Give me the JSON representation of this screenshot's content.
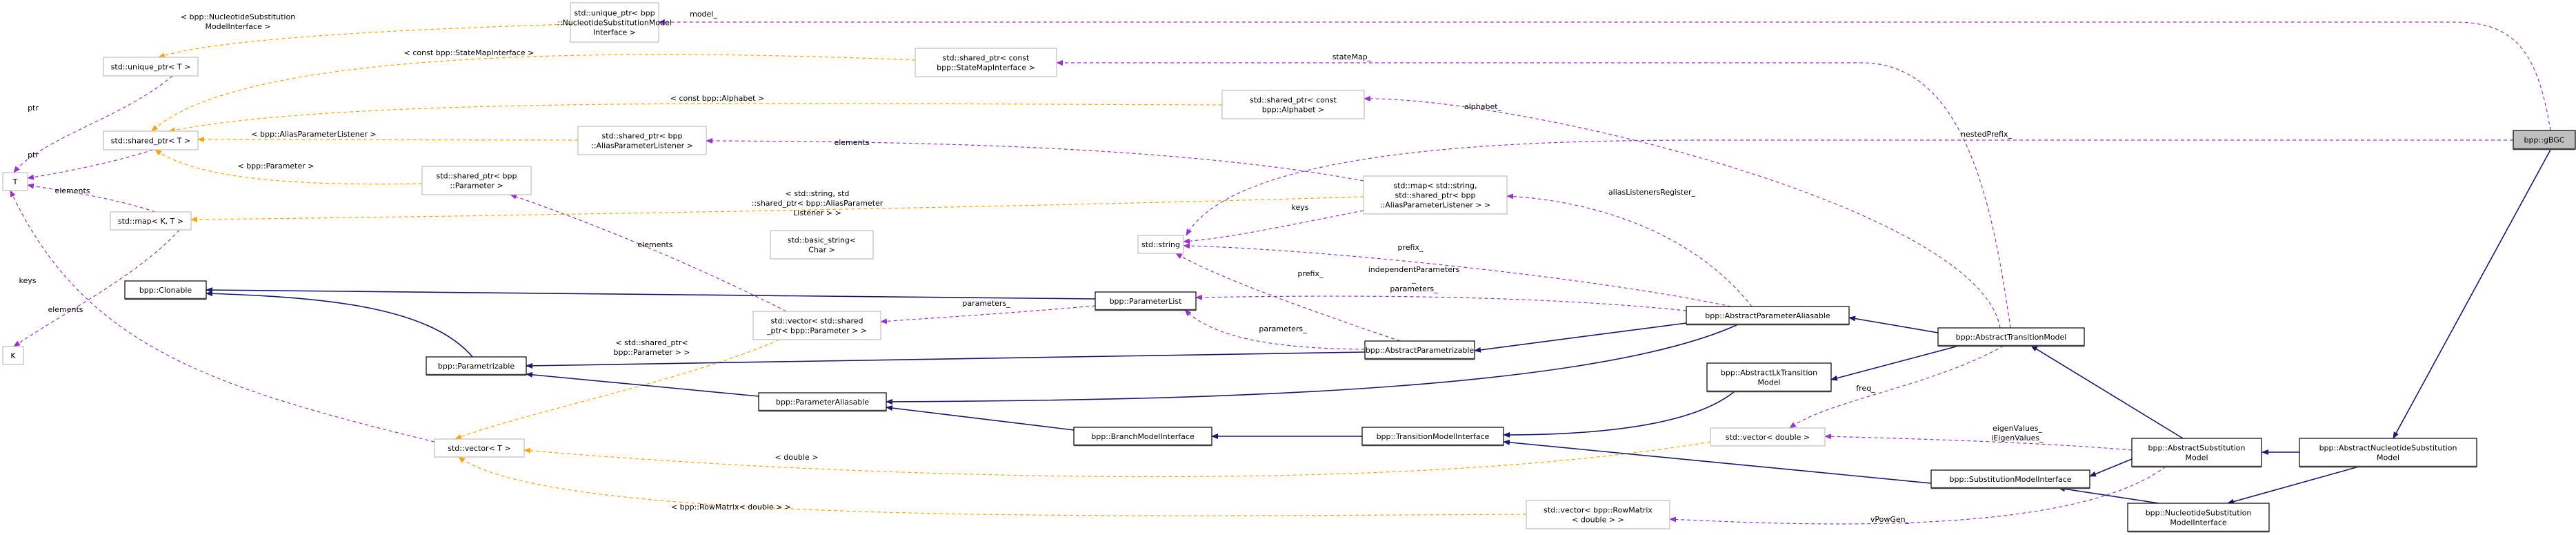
{
  "colors": {
    "usage_edge": "#9a32cd",
    "template_edge": "#ffa500",
    "inheritance_edge": "#191970",
    "focus_node_fill": "#bfbfbf",
    "template_node_border": "#bfbfbf",
    "class_node_border": "#000000"
  },
  "nodes": {
    "gBGC": [
      "bpp::gBGC"
    ],
    "unique_ptr_nsm": [
      "std::unique_ptr< bpp",
      "::NucleotideSubstitutionModel",
      "Interface >"
    ],
    "unique_ptr_T": [
      "std::unique_ptr< T >"
    ],
    "shared_ptr_statemap": [
      "std::shared_ptr< const",
      "bpp::StateMapInterface >"
    ],
    "shared_ptr_alphabet": [
      "std::shared_ptr< const",
      "bpp::Alphabet >"
    ],
    "shared_ptr_T": [
      "std::shared_ptr< T >"
    ],
    "shared_ptr_apl": [
      "std::shared_ptr< bpp",
      "::AliasParameterListener >"
    ],
    "shared_ptr_param": [
      "std::shared_ptr< bpp",
      "::Parameter >"
    ],
    "T": [
      "T"
    ],
    "map_KT": [
      "std::map< K, T >"
    ],
    "map_string_apl": [
      "std::map< std::string,",
      "std::shared_ptr< bpp",
      "::AliasParameterListener > >"
    ],
    "basic_string": [
      "std::basic_string<",
      "Char >"
    ],
    "string": [
      "std::string"
    ],
    "K": [
      "K"
    ],
    "Clonable": [
      "bpp::Clonable"
    ],
    "ParameterList": [
      "bpp::ParameterList"
    ],
    "vector_sp_param": [
      "std::vector< std::shared",
      "_ptr< bpp::Parameter > >"
    ],
    "Parametrizable": [
      "bpp::Parametrizable"
    ],
    "AbstractParametrizable": [
      "bpp::AbstractParametrizable"
    ],
    "AbstractParameterAliasable": [
      "bpp::AbstractParameterAliasable"
    ],
    "AbstractTransitionModel": [
      "bpp::AbstractTransitionModel"
    ],
    "AbstractLkTransitionModel": [
      "bpp::AbstractLkTransition",
      "Model"
    ],
    "ParameterAliasable": [
      "bpp::ParameterAliasable"
    ],
    "BranchModelInterface": [
      "bpp::BranchModelInterface"
    ],
    "TransitionModelInterface": [
      "bpp::TransitionModelInterface"
    ],
    "vector_double": [
      "std::vector< double >"
    ],
    "vector_T": [
      "std::vector< T >"
    ],
    "AbstractSubstitutionModel": [
      "bpp::AbstractSubstitution",
      "Model"
    ],
    "AbstractNucleotideSubstitutionModel": [
      "bpp::AbstractNucleotideSubstitution",
      "Model"
    ],
    "SubstitutionModelInterface": [
      "bpp::SubstitutionModelInterface"
    ],
    "vector_rowmatrix": [
      "std::vector< bpp::RowMatrix",
      "< double > >"
    ],
    "NucleotideSubstitutionModelInterface": [
      "bpp::NucleotideSubstitution",
      "ModelInterface"
    ]
  },
  "edge_labels": {
    "model": [
      "model_"
    ],
    "stateMap": [
      "stateMap_"
    ],
    "alphabet": [
      "alphabet_"
    ],
    "nestedPrefix": [
      "nestedPrefix_"
    ],
    "elements_apl": [
      "elements"
    ],
    "aliasListenersRegister": [
      "aliasListenersRegister_"
    ],
    "keys_map": [
      "keys"
    ],
    "prefix_apa": [
      "prefix_"
    ],
    "prefix_ap": [
      "prefix_"
    ],
    "independentParameters": [
      "independentParameters",
      "_",
      "parameters_"
    ],
    "parameters_ap": [
      "parameters_"
    ],
    "parameters_pl": [
      "parameters_"
    ],
    "elements_param": [
      "elements"
    ],
    "ptr_unique": [
      "ptr"
    ],
    "ptr_shared": [
      "ptr"
    ],
    "elements_map": [
      "elements"
    ],
    "keys_K": [
      "keys"
    ],
    "elements_vector": [
      "elements"
    ],
    "freq": [
      "freq_"
    ],
    "eigenValues": [
      "eigenValues_",
      "iEigenValues_"
    ],
    "vPowGen": [
      "vPowGen_"
    ],
    "tpl_nsm": [
      "< bpp::NucleotideSubstitution",
      "ModelInterface >"
    ],
    "tpl_statemap": [
      "< const bpp::StateMapInterface >"
    ],
    "tpl_alphabet": [
      "< const bpp::Alphabet >"
    ],
    "tpl_apl": [
      "< bpp::AliasParameterListener >"
    ],
    "tpl_param": [
      "< bpp::Parameter >"
    ],
    "tpl_map": [
      "< std::string, std",
      "::shared_ptr< bpp::AliasParameter",
      "Listener > >"
    ],
    "tpl_vec_sp": [
      "< std::shared_ptr<",
      "bpp::Parameter > >"
    ],
    "tpl_double": [
      "< double >"
    ],
    "tpl_rowmatrix": [
      "< bpp::RowMatrix< double > >"
    ]
  }
}
